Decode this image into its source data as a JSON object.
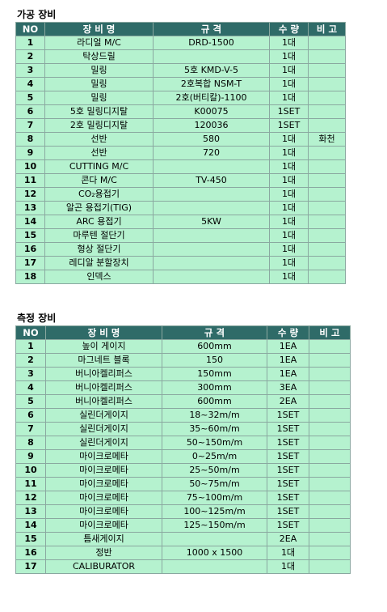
{
  "machining": {
    "title": "가공 장비",
    "headers": [
      "NO",
      "장 비 명",
      "규 격",
      "수 량",
      "비 고"
    ],
    "rows": [
      [
        "1",
        "라디얼 M/C",
        "DRD-1500",
        "1대",
        ""
      ],
      [
        "2",
        "탁상드릴",
        "",
        "1대",
        ""
      ],
      [
        "3",
        "밀링",
        "5호 KMD-V-5",
        "1대",
        ""
      ],
      [
        "4",
        "밀링",
        "2호복합 NSM-T",
        "1대",
        ""
      ],
      [
        "5",
        "밀링",
        "2호(버티칼)-1100",
        "1대",
        ""
      ],
      [
        "6",
        "5호 밀링디지탈",
        "K00075",
        "1SET",
        ""
      ],
      [
        "7",
        "2호 밀링디지탈",
        "120036",
        "1SET",
        ""
      ],
      [
        "8",
        "선반",
        "580",
        "1대",
        "화천"
      ],
      [
        "9",
        "선반",
        "720",
        "1대",
        ""
      ],
      [
        "10",
        "CUTTING M/C",
        "",
        "1대",
        ""
      ],
      [
        "11",
        "콘다 M/C",
        "TV-450",
        "1대",
        ""
      ],
      [
        "12",
        "CO₂용접기",
        "",
        "1대",
        ""
      ],
      [
        "13",
        "알곤 용접기(TIG)",
        "",
        "1대",
        ""
      ],
      [
        "14",
        "ARC 용접기",
        "5KW",
        "1대",
        ""
      ],
      [
        "15",
        "마루텐 절단기",
        "",
        "1대",
        ""
      ],
      [
        "16",
        "형상 절단기",
        "",
        "1대",
        ""
      ],
      [
        "17",
        "레디알 분할장치",
        "",
        "1대",
        ""
      ],
      [
        "18",
        "인덱스",
        "",
        "1대",
        ""
      ]
    ]
  },
  "measuring": {
    "title": "측정 장비",
    "headers": [
      "NO",
      "장 비 명",
      "규 격",
      "수 량",
      "비 고"
    ],
    "rows": [
      [
        "1",
        "높이 게이지",
        "600mm",
        "1EA",
        ""
      ],
      [
        "2",
        "마그네트 블록",
        "150",
        "1EA",
        ""
      ],
      [
        "3",
        "버니아켈리퍼스",
        "150mm",
        "1EA",
        ""
      ],
      [
        "4",
        "버니아켈리퍼스",
        "300mm",
        "3EA",
        ""
      ],
      [
        "5",
        "버니아켈리퍼스",
        "600mm",
        "2EA",
        ""
      ],
      [
        "6",
        "실린더게이지",
        "18~32m/m",
        "1SET",
        ""
      ],
      [
        "7",
        "실린더게이지",
        "35~60m/m",
        "1SET",
        ""
      ],
      [
        "8",
        "실린더게이지",
        "50~150m/m",
        "1SET",
        ""
      ],
      [
        "9",
        "마이크로메타",
        "0~25m/m",
        "1SET",
        ""
      ],
      [
        "10",
        "마이크로메타",
        "25~50m/m",
        "1SET",
        ""
      ],
      [
        "11",
        "마이크로메타",
        "50~75m/m",
        "1SET",
        ""
      ],
      [
        "12",
        "마이크로메타",
        "75~100m/m",
        "1SET",
        ""
      ],
      [
        "13",
        "마이크로메타",
        "100~125m/m",
        "1SET",
        ""
      ],
      [
        "14",
        "마이크로메타",
        "125~150m/m",
        "1SET",
        ""
      ],
      [
        "15",
        "틈새게이지",
        "",
        "2EA",
        ""
      ],
      [
        "16",
        "정반",
        "1000 x 1500",
        "1대",
        ""
      ],
      [
        "17",
        "CALIBURATOR",
        "",
        "1대",
        ""
      ]
    ]
  }
}
